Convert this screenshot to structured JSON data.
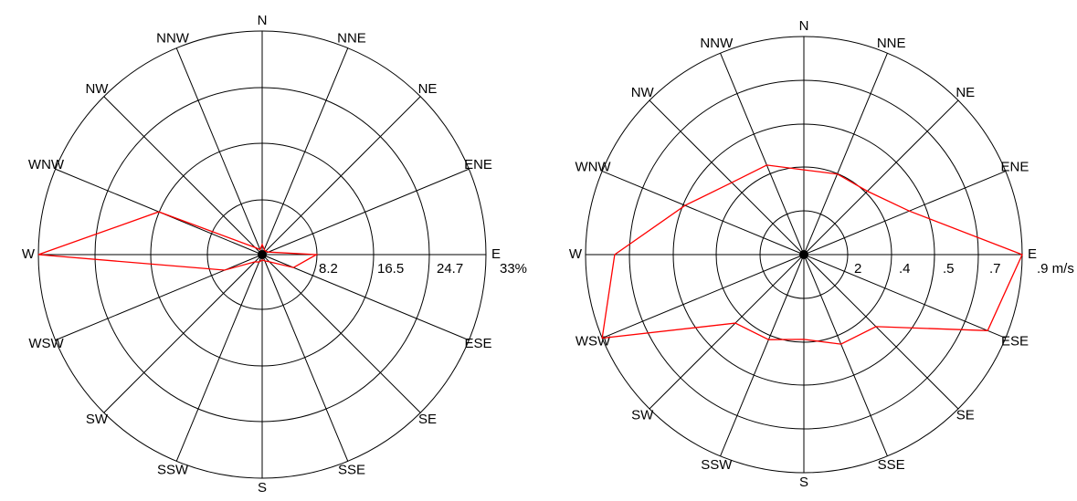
{
  "colors": {
    "background": "#ffffff",
    "grid": "#000000",
    "series": "#ff0000"
  },
  "chart_data": [
    {
      "type": "radar",
      "directions": [
        "N",
        "NNE",
        "NE",
        "ENE",
        "E",
        "ESE",
        "SE",
        "SSE",
        "S",
        "SSW",
        "SW",
        "WSW",
        "W",
        "WNW",
        "NW",
        "NNW"
      ],
      "ring_labels": [
        "8.2",
        "16.5",
        "24.7",
        "33%"
      ],
      "rmax": 33,
      "values": [
        1.5,
        0.8,
        0.7,
        1.0,
        8.0,
        5.0,
        1.5,
        1.0,
        0.8,
        1.2,
        1.5,
        6.0,
        33.0,
        16.5,
        1.5,
        0.8
      ]
    },
    {
      "type": "radar",
      "directions": [
        "N",
        "NNE",
        "NE",
        "ENE",
        "E",
        "ESE",
        "SE",
        "SSE",
        "S",
        "SSW",
        "SW",
        "WSW",
        "W",
        "WNW",
        "NW",
        "NNW"
      ],
      "ring_labels": [
        "2",
        ".4",
        ".5",
        ".7",
        ".9 m/s"
      ],
      "rmax": 0.9,
      "values": [
        0.35,
        0.36,
        0.37,
        0.47,
        0.9,
        0.82,
        0.42,
        0.4,
        0.35,
        0.38,
        0.4,
        0.9,
        0.78,
        0.53,
        0.42,
        0.4
      ]
    }
  ]
}
